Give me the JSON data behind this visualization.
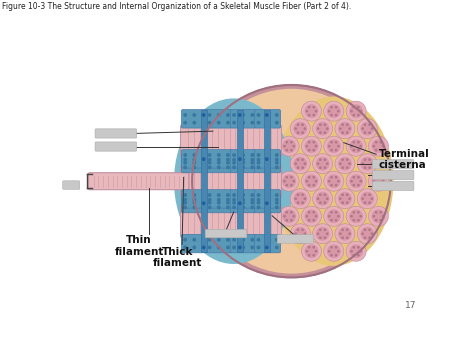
{
  "title": "Figure 10-3 The Structure and Internal Organization of a Skeletal Muscle Fiber (Part 2 of 4).",
  "title_fontsize": 5.5,
  "page_number": "17",
  "bg_color": "#ffffff",
  "labels": {
    "terminal_cisterna": "Terminal\ncisterna",
    "thin_filament": "Thin\nfilament",
    "thick_filament": "Thick\nfilament"
  },
  "colors": {
    "outer_muscle_pink": "#c4919a",
    "muscle_border": "#b07888",
    "sarcomere_pink": "#e8b8bc",
    "sarcomere_stripe": "#c898a0",
    "sr_blue": "#7ab8cc",
    "sr_blue_dark": "#5a98b8",
    "sr_hole": "#3878a0",
    "t_tubule": "#5090b0",
    "yellow_connective": "#e8c878",
    "mito_pink": "#e0a8b0",
    "mito_inner": "#c88898",
    "label_line": "#333333",
    "label_gray": "#c8c8c8"
  }
}
